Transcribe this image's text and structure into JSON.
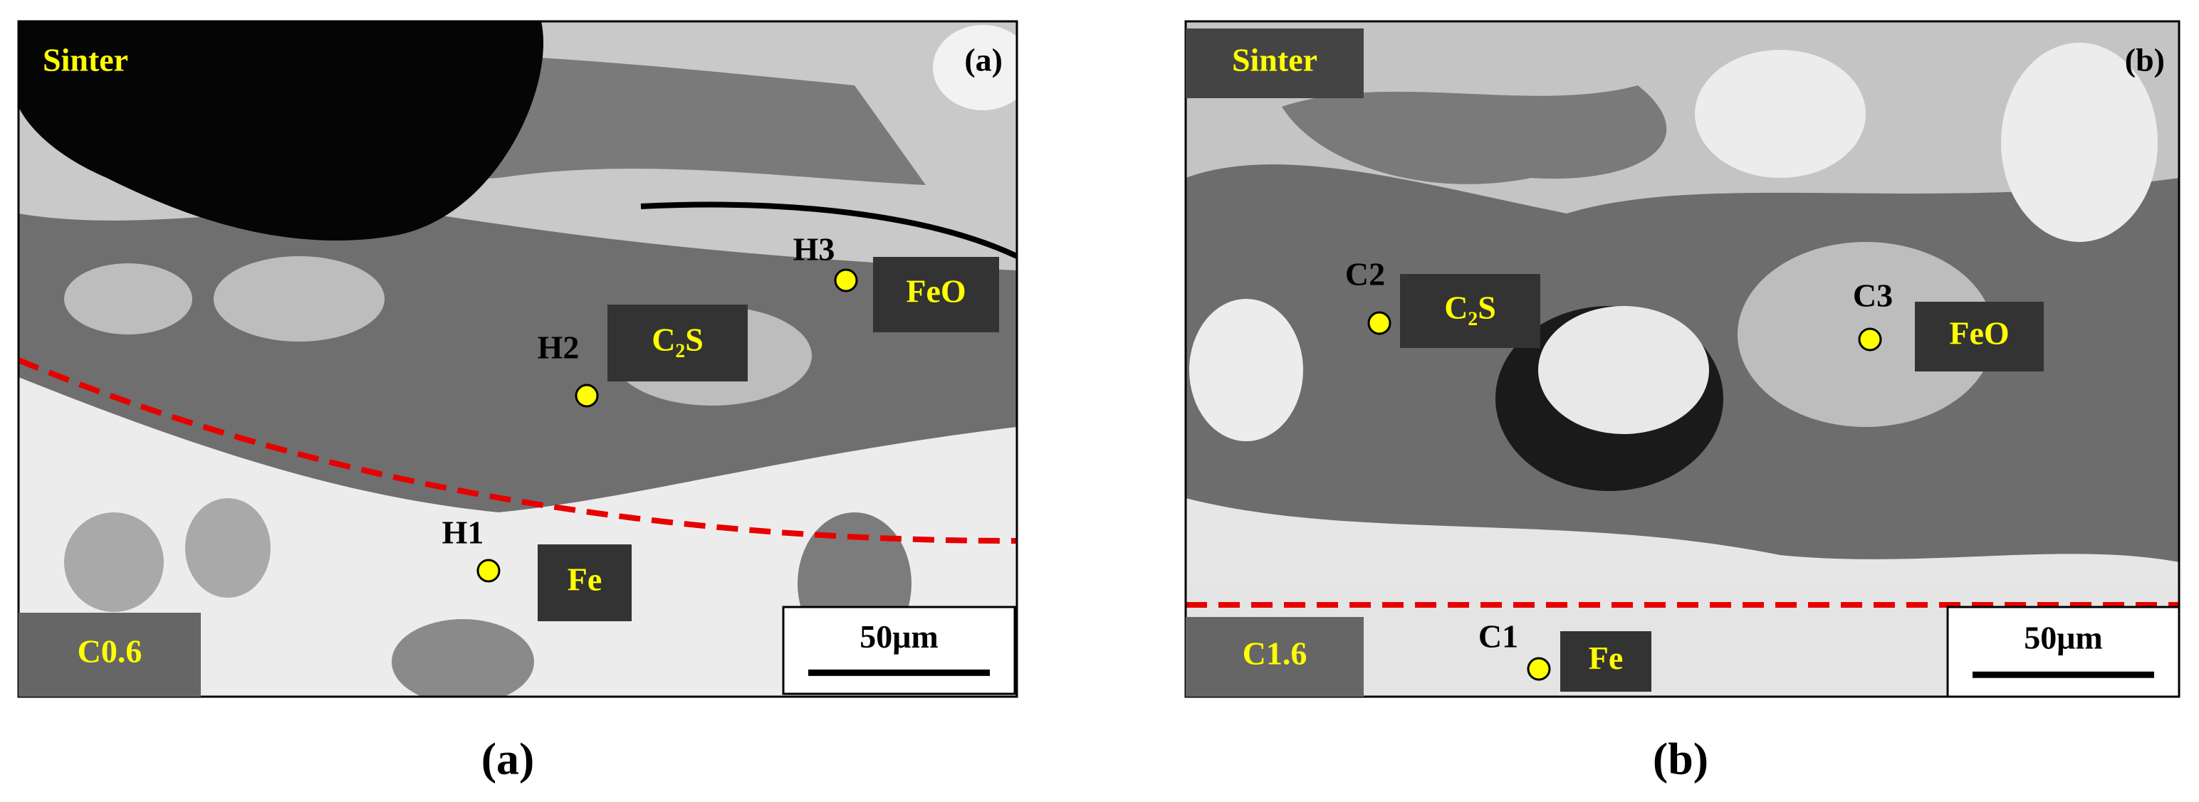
{
  "panels": [
    {
      "sinter_label": "Sinter",
      "corner_label": "(a)",
      "points": [
        {
          "label": "H1"
        },
        {
          "label": "H2"
        },
        {
          "label": "H3"
        }
      ],
      "phases": [
        {
          "label": "Fe"
        },
        {
          "label": "C₂S"
        },
        {
          "label": "FeO"
        }
      ],
      "sample_label": "C0.6",
      "scale_bar": "50μm",
      "caption": "(a)"
    },
    {
      "sinter_label": "Sinter",
      "corner_label": "(b)",
      "points": [
        {
          "label": "C1"
        },
        {
          "label": "C2"
        },
        {
          "label": "C3"
        }
      ],
      "phases": [
        {
          "label": "Fe"
        },
        {
          "label": "C₂S"
        },
        {
          "label": "FeO"
        }
      ],
      "sample_label": "C1.6",
      "scale_bar": "50μm",
      "caption": "(b)"
    }
  ]
}
